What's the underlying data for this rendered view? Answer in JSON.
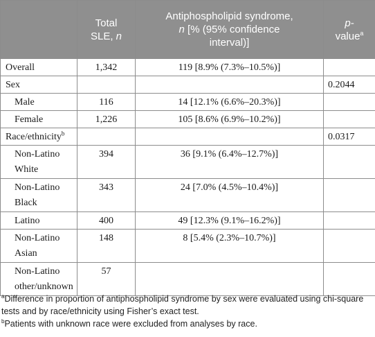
{
  "table": {
    "headers": {
      "col1": "",
      "col2_line1": "Total",
      "col2_line2": "SLE,",
      "col2_italic": "n",
      "col3_line1": "Antiphospholipid syndrome,",
      "col3_italic": "n",
      "col3_rest": "[% (95% confidence",
      "col3_line3": "interval)]",
      "col4_line1": "p-",
      "col4_line2": "value",
      "col4_sup": "a"
    },
    "rows": [
      {
        "label": "Overall",
        "sup": "",
        "total": "1,342",
        "aps": "119 [8.9% (7.3%–10.5%)]",
        "p": "",
        "indent": false
      },
      {
        "label": "Sex",
        "sup": "",
        "total": "",
        "aps": "",
        "p": "0.2044",
        "indent": false
      },
      {
        "label": "Male",
        "sup": "",
        "total": "116",
        "aps": "14 [12.1% (6.6%–20.3%)]",
        "p": "",
        "indent": true
      },
      {
        "label": "Female",
        "sup": "",
        "total": "1,226",
        "aps": "105 [8.6% (6.9%–10.2%)]",
        "p": "",
        "indent": true
      },
      {
        "label": "Race/ethnicity",
        "sup": "b",
        "total": "",
        "aps": "",
        "p": "0.0317",
        "indent": false
      },
      {
        "label": "Non-Latino White",
        "sup": "",
        "total": "394",
        "aps": "36 [9.1% (6.4%–12.7%)]",
        "p": "",
        "indent": true
      },
      {
        "label": "Non-Latino Black",
        "sup": "",
        "total": "343",
        "aps": "24 [7.0% (4.5%–10.4%)]",
        "p": "",
        "indent": true
      },
      {
        "label": "Latino",
        "sup": "",
        "total": "400",
        "aps": "49 [12.3% (9.1%–16.2%)]",
        "p": "",
        "indent": true
      },
      {
        "label": "Non-Latino Asian",
        "sup": "",
        "total": "148",
        "aps": "8 [5.4% (2.3%–10.7%)]",
        "p": "",
        "indent": true
      },
      {
        "label": "Non-Latino other/unknown",
        "sup": "",
        "total": "57",
        "aps": "",
        "p": "",
        "indent": true
      }
    ]
  },
  "footnotes": {
    "a_mark": "a",
    "a_text": "Difference in proportion of antiphospholipid syndrome by sex were evaluated using chi-square tests and by race/ethnicity using Fisher’s exact test.",
    "b_mark": "b",
    "b_text": "Patients with unknown race were excluded from analyses by race."
  }
}
